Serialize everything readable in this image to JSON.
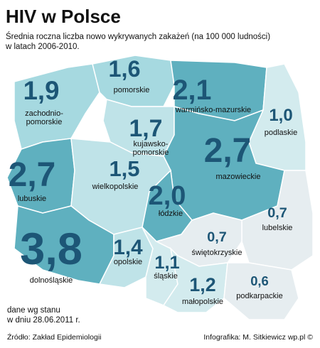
{
  "header": {
    "title": "HIV w Polsce",
    "subtitle": [
      "Średnia roczna liczba nowo wykrywanych zakażeń (na 100 000 ludności)",
      "w latach 2006-2010."
    ]
  },
  "regions": [
    {
      "name": [
        "zachodnio-",
        "pomorskie"
      ],
      "value": 1.9,
      "label": "1,9",
      "color": "#a6d9e0"
    },
    {
      "name": [
        "pomorskie"
      ],
      "value": 1.6,
      "label": "1,6",
      "color": "#a6d9e0"
    },
    {
      "name": [
        "warmińsko-mazurskie"
      ],
      "value": 2.1,
      "label": "2,1",
      "color": "#5fb0bf"
    },
    {
      "name": [
        "podlaskie"
      ],
      "value": 1.0,
      "label": "1,0",
      "color": "#d3ebee"
    },
    {
      "name": [
        "kujawsko-",
        "pomorskie"
      ],
      "value": 1.7,
      "label": "1,7",
      "color": "#bfe3e8"
    },
    {
      "name": [
        "mazowieckie"
      ],
      "value": 2.7,
      "label": "2,7",
      "color": "#5fb0bf"
    },
    {
      "name": [
        "lubuskie"
      ],
      "value": 2.7,
      "label": "2,7",
      "color": "#5fb0bf"
    },
    {
      "name": [
        "wielkopolskie"
      ],
      "value": 1.5,
      "label": "1,5",
      "color": "#bfe3e8"
    },
    {
      "name": [
        "łódzkie"
      ],
      "value": 2.0,
      "label": "2,0",
      "color": "#5fb0bf"
    },
    {
      "name": [
        "lubelskie"
      ],
      "value": 0.7,
      "label": "0,7",
      "color": "#e6edf0"
    },
    {
      "name": [
        "dolnośląskie"
      ],
      "value": 3.8,
      "label": "3,8",
      "color": "#5fb0bf"
    },
    {
      "name": [
        "opolskie"
      ],
      "value": 1.4,
      "label": "1,4",
      "color": "#bfe3e8"
    },
    {
      "name": [
        "śląskie"
      ],
      "value": 1.1,
      "label": "1,1",
      "color": "#d3ebee"
    },
    {
      "name": [
        "świętokrzyskie"
      ],
      "value": 0.7,
      "label": "0,7",
      "color": "#e6edf0"
    },
    {
      "name": [
        "małopolskie"
      ],
      "value": 1.2,
      "label": "1,2",
      "color": "#d3ebee"
    },
    {
      "name": [
        "podkarpackie"
      ],
      "value": 0.6,
      "label": "0,6",
      "color": "#e6edf0"
    }
  ],
  "footer": {
    "note": [
      "dane wg stanu",
      "w dniu 28.06.2011 r."
    ],
    "source": "Źródło: Zakład Epidemiologii",
    "credit": "Infografika: M. Sitkiewicz wp.pl ©"
  }
}
